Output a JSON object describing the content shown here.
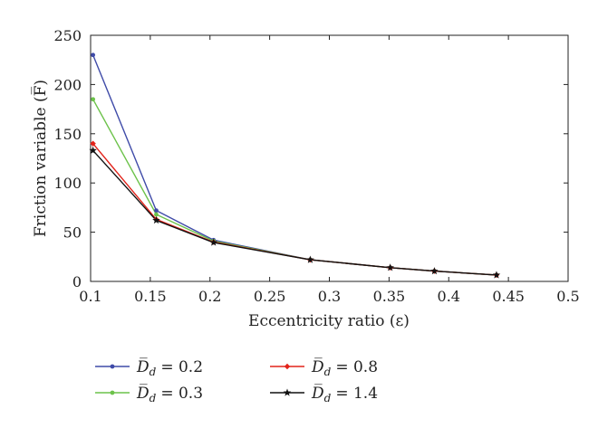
{
  "chart_data": {
    "type": "line",
    "title": "",
    "xlabel": "Eccentricity ratio (ε)",
    "ylabel": "Friction variable (F̅)",
    "xlim": [
      0.1,
      0.5
    ],
    "ylim": [
      0,
      250
    ],
    "xticks": [
      "0.1",
      "0.15",
      "0.2",
      "0.25",
      "0.3",
      "0.35",
      "0.4",
      "0.45",
      "0.5"
    ],
    "yticks": [
      "0",
      "50",
      "100",
      "150",
      "200",
      "250"
    ],
    "grid": false,
    "legend_position": "bottom",
    "x": [
      0.102,
      0.155,
      0.203,
      0.284,
      0.351,
      0.388,
      0.44
    ],
    "series": [
      {
        "label_symbol": "D̅",
        "label_sub": "d",
        "label_value": "= 0.2",
        "color": "#3f4ba8",
        "marker": "circle",
        "values": [
          230,
          72,
          42,
          22,
          14,
          10.5,
          6.5
        ]
      },
      {
        "label_symbol": "D̅",
        "label_sub": "d",
        "label_value": "= 0.3",
        "color": "#6cc24a",
        "marker": "circle",
        "values": [
          185,
          68,
          41,
          22,
          14,
          10.5,
          6.5
        ]
      },
      {
        "label_symbol": "D̅",
        "label_sub": "d",
        "label_value": "= 0.8",
        "color": "#e2231a",
        "marker": "diamond",
        "values": [
          140,
          63,
          40,
          22,
          14,
          10.5,
          6.5
        ]
      },
      {
        "label_symbol": "D̅",
        "label_sub": "d",
        "label_value": "= 1.4",
        "color": "#111111",
        "marker": "star",
        "values": [
          133,
          62,
          39.5,
          22,
          14,
          10.5,
          6.5
        ]
      }
    ]
  }
}
